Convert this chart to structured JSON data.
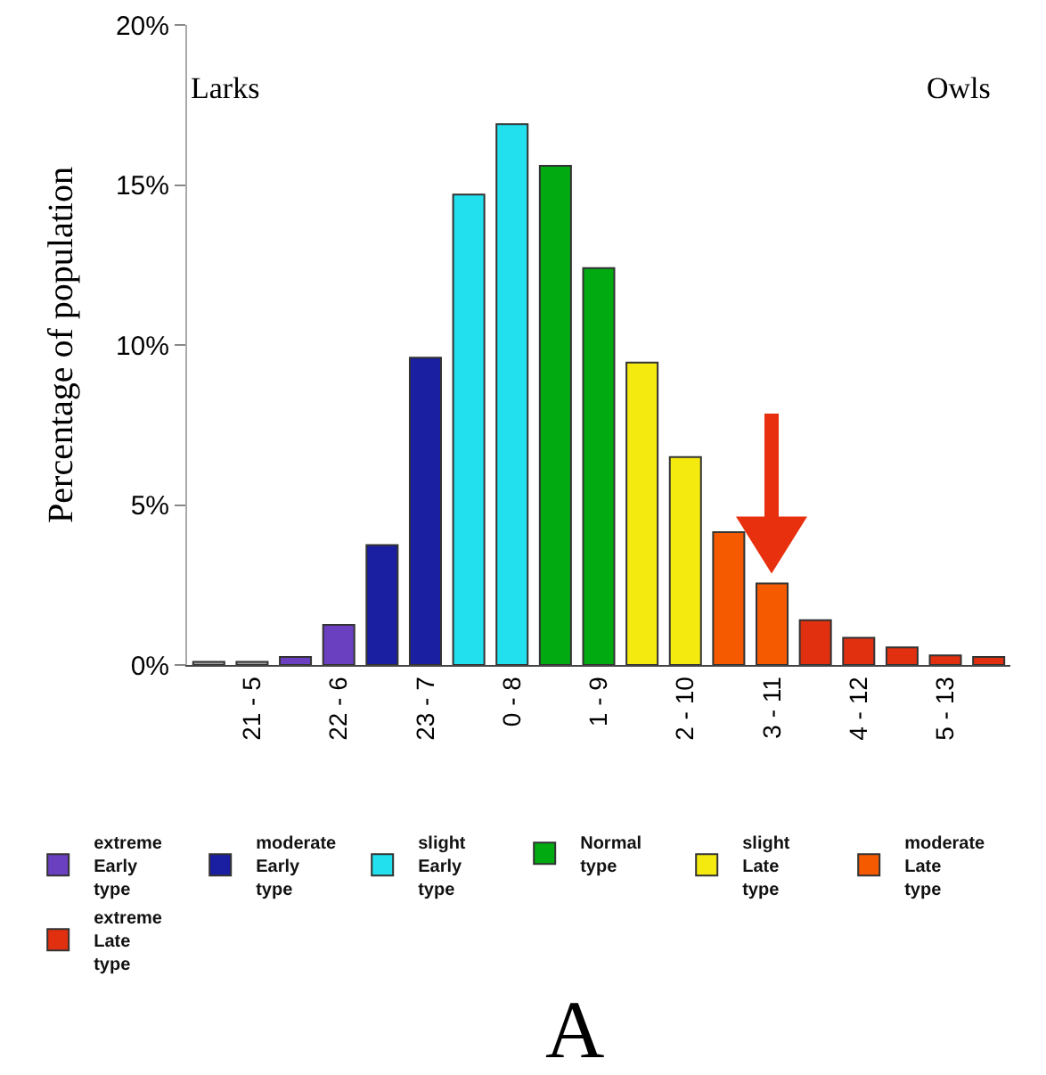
{
  "chart_data": {
    "type": "bar",
    "ylabel": "Percentage of population",
    "categories": [
      null,
      "21 - 5",
      null,
      "22 - 6",
      null,
      "23 - 7",
      null,
      "0 - 8",
      null,
      "1 - 9",
      null,
      "2 - 10",
      null,
      "3 - 11",
      null,
      "4 - 12",
      null,
      "5 - 13",
      null
    ],
    "series": [
      {
        "color": "#a0a0a0",
        "values": [
          0.1,
          0.1,
          null,
          null,
          null,
          null,
          null,
          null,
          null,
          null,
          null,
          null,
          null,
          null,
          null,
          null,
          null,
          null,
          null
        ]
      },
      {
        "name": "extreme Early type",
        "color": "#6a40c0",
        "values": [
          null,
          null,
          0.25,
          1.25,
          null,
          null,
          null,
          null,
          null,
          null,
          null,
          null,
          null,
          null,
          null,
          null,
          null,
          null,
          null
        ]
      },
      {
        "name": "moderate Early type",
        "color": "#1a1ea0",
        "values": [
          null,
          null,
          null,
          null,
          3.75,
          9.6,
          null,
          null,
          null,
          null,
          null,
          null,
          null,
          null,
          null,
          null,
          null,
          null,
          null
        ]
      },
      {
        "name": "slight Early type",
        "color": "#22e0ee",
        "values": [
          null,
          null,
          null,
          null,
          null,
          null,
          14.7,
          16.9,
          null,
          null,
          null,
          null,
          null,
          null,
          null,
          null,
          null,
          null,
          null
        ]
      },
      {
        "name": "Normal type",
        "color": "#00aa10",
        "values": [
          null,
          null,
          null,
          null,
          null,
          null,
          null,
          null,
          15.6,
          12.4,
          null,
          null,
          null,
          null,
          null,
          null,
          null,
          null,
          null
        ]
      },
      {
        "name": "slight Late type",
        "color": "#f5ea10",
        "values": [
          null,
          null,
          null,
          null,
          null,
          null,
          null,
          null,
          null,
          null,
          9.45,
          6.5,
          null,
          null,
          null,
          null,
          null,
          null,
          null
        ]
      },
      {
        "name": "moderate Late type",
        "color": "#f65a00",
        "values": [
          null,
          null,
          null,
          null,
          null,
          null,
          null,
          null,
          null,
          null,
          null,
          null,
          4.15,
          2.55,
          null,
          null,
          null,
          null,
          null
        ]
      },
      {
        "name": "extreme Late type",
        "color": "#e03010",
        "values": [
          null,
          null,
          null,
          null,
          null,
          null,
          null,
          null,
          null,
          null,
          null,
          null,
          null,
          null,
          1.4,
          0.85,
          0.55,
          0.3,
          0.25
        ]
      }
    ],
    "ylim": [
      0,
      20
    ],
    "yticks": [
      {
        "value": 0,
        "label": "0%"
      },
      {
        "value": 5,
        "label": "5%"
      },
      {
        "value": 10,
        "label": "10%"
      },
      {
        "value": 15,
        "label": "15%"
      },
      {
        "value": 20,
        "label": "20%"
      }
    ],
    "grid": false,
    "legend": "bottom",
    "annotations": [
      "Larks",
      "Owls",
      "A"
    ]
  }
}
